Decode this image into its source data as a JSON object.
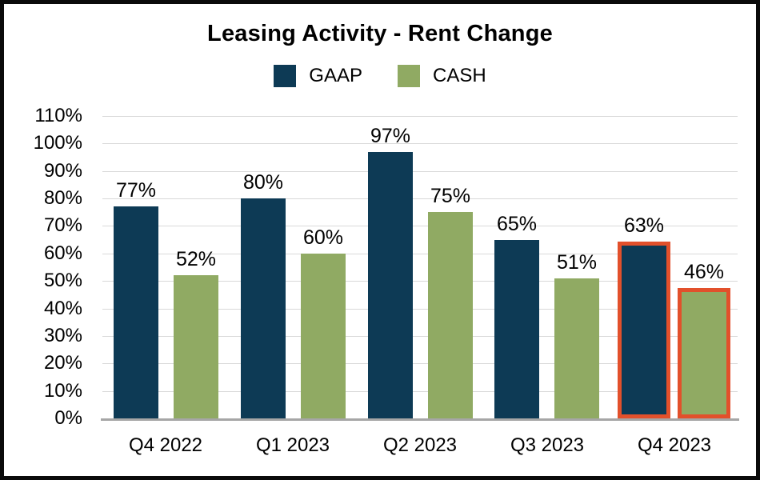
{
  "chart_data": {
    "type": "bar",
    "title": "Leasing Activity - Rent Change",
    "categories": [
      "Q4 2022",
      "Q1 2023",
      "Q2 2023",
      "Q3 2023",
      "Q4 2023"
    ],
    "series": [
      {
        "name": "GAAP",
        "color": "#0d3a55",
        "values": [
          77,
          80,
          97,
          65,
          63
        ]
      },
      {
        "name": "CASH",
        "color": "#90aa63",
        "values": [
          52,
          60,
          75,
          51,
          46
        ]
      }
    ],
    "value_suffix": "%",
    "xlabel": "",
    "ylabel": "",
    "ylim": [
      0,
      110
    ],
    "ytick_step": 10,
    "ytick_labels": [
      "0%",
      "10%",
      "20%",
      "30%",
      "40%",
      "50%",
      "60%",
      "70%",
      "80%",
      "90%",
      "100%",
      "110%"
    ],
    "grid": "horizontal",
    "legend_position": "top",
    "highlight": {
      "category": "Q4 2023",
      "group_index": 4,
      "outline_color": "#e2502b",
      "outline_width": 5
    }
  },
  "colors": {
    "gaap": "#0d3a55",
    "cash": "#90aa63",
    "highlight_outline": "#e2502b",
    "gridline": "#d9d9d9",
    "axis_line": "#a6a6a6",
    "text": "#000000",
    "frame_border": "#0a0a0a",
    "background": "#ffffff"
  }
}
